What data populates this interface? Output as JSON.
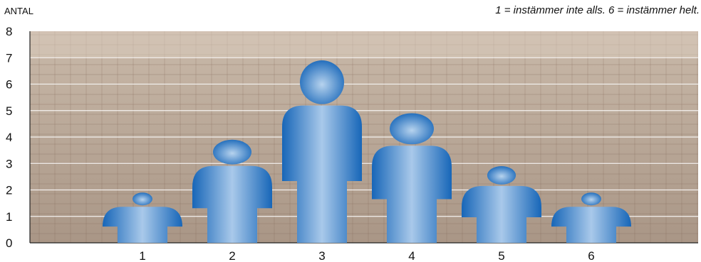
{
  "chart_data": {
    "type": "bar",
    "ylabel": "ANTAL",
    "annotation": "1 = instämmer inte alls. 6 = instämmer helt.",
    "categories": [
      "1",
      "2",
      "3",
      "4",
      "5",
      "6"
    ],
    "values": [
      1.9,
      3.9,
      6.9,
      4.9,
      2.9,
      1.9
    ],
    "ylim": [
      0,
      8
    ],
    "yticks": [
      0,
      1,
      2,
      3,
      4,
      5,
      6,
      7,
      8
    ],
    "grid": true,
    "colors": {
      "figure_dark": "#1f73c7",
      "figure_light": "#b7d3ee",
      "background_photo": "#b9a89a"
    }
  }
}
